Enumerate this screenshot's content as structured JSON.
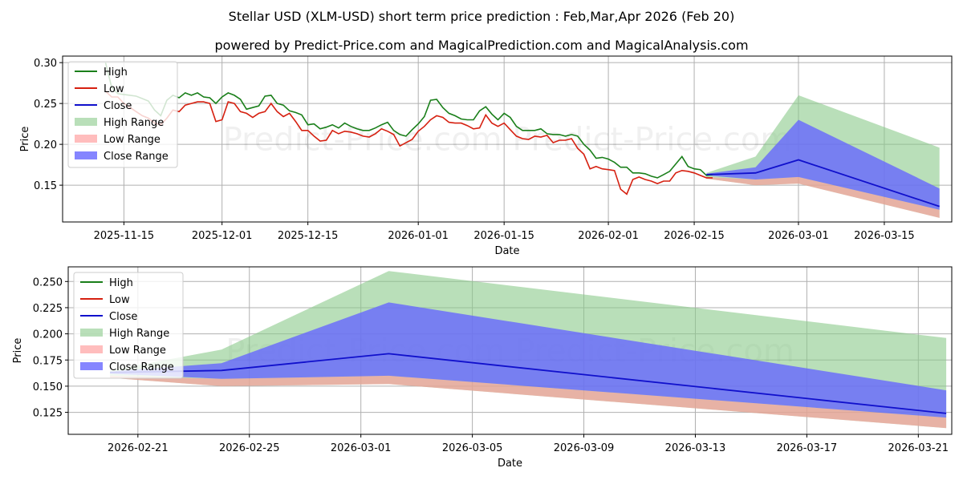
{
  "title_line1": "Stellar USD (XLM-USD) short term price prediction : Feb,Mar,Apr 2026 (Feb 20)",
  "title_line2": "powered by Predict-Price.com and MagicalPrediction.com and MagicalAnalysis.com",
  "watermark": "Predict-Price.com",
  "colors": {
    "high": "#1a7f1a",
    "low": "#d62010",
    "close": "#1010cc",
    "high_range": "#8bc98b",
    "low_range": "#ff9999",
    "close_range": "#6666ff"
  },
  "legend": [
    "High",
    "Low",
    "Close",
    "High Range",
    "Low Range",
    "Close Range"
  ],
  "chart_data": [
    {
      "type": "line",
      "name": "top",
      "xlabel": "Date",
      "ylabel": "Price",
      "xlim": [
        -7,
        138
      ],
      "ylim": [
        0.105,
        0.308
      ],
      "yticks": [
        0.15,
        0.2,
        0.25,
        0.3
      ],
      "ytick_labels": [
        "0.15",
        "0.20",
        "0.25",
        "0.30"
      ],
      "xticks": [
        3,
        19,
        33,
        51,
        65,
        82,
        96,
        113,
        127
      ],
      "xtick_labels": [
        "2025-11-15",
        "2025-12-01",
        "2025-12-15",
        "2026-01-01",
        "2026-01-15",
        "2026-02-01",
        "2026-02-15",
        "2026-03-01",
        "2026-03-15"
      ],
      "x_start_date": "2025-11-12",
      "history": {
        "x_start": 0,
        "high": [
          0.3,
          0.27,
          0.262,
          0.261,
          0.26,
          0.259,
          0.256,
          0.253,
          0.242,
          0.235,
          0.254,
          0.26,
          0.257,
          0.263,
          0.26,
          0.263,
          0.258,
          0.257,
          0.25,
          0.258,
          0.263,
          0.26,
          0.255,
          0.243,
          0.245,
          0.247,
          0.259,
          0.26,
          0.25,
          0.248,
          0.241,
          0.239,
          0.236,
          0.224,
          0.225,
          0.219,
          0.221,
          0.224,
          0.22,
          0.226,
          0.222,
          0.219,
          0.217,
          0.217,
          0.22,
          0.224,
          0.227,
          0.217,
          0.212,
          0.21,
          0.218,
          0.225,
          0.234,
          0.254,
          0.255,
          0.245,
          0.238,
          0.235,
          0.231,
          0.23,
          0.23,
          0.241,
          0.246,
          0.237,
          0.23,
          0.238,
          0.233,
          0.222,
          0.217,
          0.217,
          0.217,
          0.219,
          0.213,
          0.212,
          0.212,
          0.21,
          0.212,
          0.21,
          0.2,
          0.193,
          0.183,
          0.184,
          0.182,
          0.178,
          0.172,
          0.172,
          0.165,
          0.165,
          0.164,
          0.161,
          0.159,
          0.163,
          0.167,
          0.176,
          0.185,
          0.173,
          0.17,
          0.169,
          0.162,
          0.163
        ],
        "low": [
          0.265,
          0.258,
          0.258,
          0.25,
          0.245,
          0.24,
          0.235,
          0.232,
          0.226,
          0.224,
          0.232,
          0.242,
          0.24,
          0.248,
          0.25,
          0.252,
          0.252,
          0.25,
          0.228,
          0.23,
          0.252,
          0.25,
          0.24,
          0.238,
          0.233,
          0.238,
          0.24,
          0.25,
          0.24,
          0.234,
          0.238,
          0.228,
          0.217,
          0.217,
          0.21,
          0.204,
          0.205,
          0.217,
          0.213,
          0.216,
          0.215,
          0.213,
          0.21,
          0.209,
          0.213,
          0.219,
          0.216,
          0.212,
          0.198,
          0.202,
          0.206,
          0.216,
          0.222,
          0.23,
          0.235,
          0.233,
          0.227,
          0.226,
          0.226,
          0.223,
          0.219,
          0.22,
          0.236,
          0.226,
          0.222,
          0.226,
          0.218,
          0.21,
          0.207,
          0.206,
          0.21,
          0.209,
          0.211,
          0.202,
          0.205,
          0.205,
          0.207,
          0.195,
          0.188,
          0.17,
          0.173,
          0.17,
          0.169,
          0.168,
          0.145,
          0.139,
          0.157,
          0.16,
          0.157,
          0.155,
          0.152,
          0.155,
          0.155,
          0.165,
          0.168,
          0.167,
          0.165,
          0.162,
          0.159,
          0.159
        ]
      },
      "forecast": {
        "x": [
          98,
          106,
          113,
          136
        ],
        "high_range_upper": [
          0.165,
          0.185,
          0.26,
          0.196
        ],
        "high_range_lower": [
          0.158,
          0.15,
          0.152,
          0.11
        ],
        "close_range_upper": [
          0.164,
          0.172,
          0.23,
          0.146
        ],
        "close_range_lower": [
          0.162,
          0.157,
          0.16,
          0.12
        ],
        "low_range_upper": [
          0.16,
          0.157,
          0.16,
          0.12
        ],
        "low_range_lower": [
          0.158,
          0.15,
          0.152,
          0.11
        ],
        "close": [
          0.163,
          0.165,
          0.181,
          0.124
        ]
      }
    },
    {
      "type": "area",
      "name": "bottom",
      "xlabel": "Date",
      "ylabel": "Price",
      "xlim": [
        -1.5,
        30.2
      ],
      "ylim": [
        0.104,
        0.264
      ],
      "yticks": [
        0.125,
        0.15,
        0.175,
        0.2,
        0.225,
        0.25
      ],
      "ytick_labels": [
        "0.125",
        "0.150",
        "0.175",
        "0.200",
        "0.225",
        "0.250"
      ],
      "xticks": [
        1,
        5,
        9,
        13,
        17,
        21,
        25,
        29
      ],
      "xtick_labels": [
        "2026-02-21",
        "2026-02-25",
        "2026-03-01",
        "2026-03-05",
        "2026-03-09",
        "2026-03-13",
        "2026-03-17",
        "2026-03-21"
      ],
      "x_start_date": "2026-02-20",
      "forecast": {
        "x": [
          0,
          4,
          10,
          30
        ],
        "high_range_upper": [
          0.165,
          0.185,
          0.26,
          0.196
        ],
        "high_range_lower": [
          0.158,
          0.15,
          0.152,
          0.11
        ],
        "close_range_upper": [
          0.164,
          0.172,
          0.23,
          0.146
        ],
        "close_range_lower": [
          0.162,
          0.157,
          0.16,
          0.12
        ],
        "low_range_upper": [
          0.16,
          0.157,
          0.16,
          0.12
        ],
        "low_range_lower": [
          0.158,
          0.15,
          0.152,
          0.11
        ],
        "close": [
          0.163,
          0.165,
          0.181,
          0.124
        ]
      }
    }
  ]
}
